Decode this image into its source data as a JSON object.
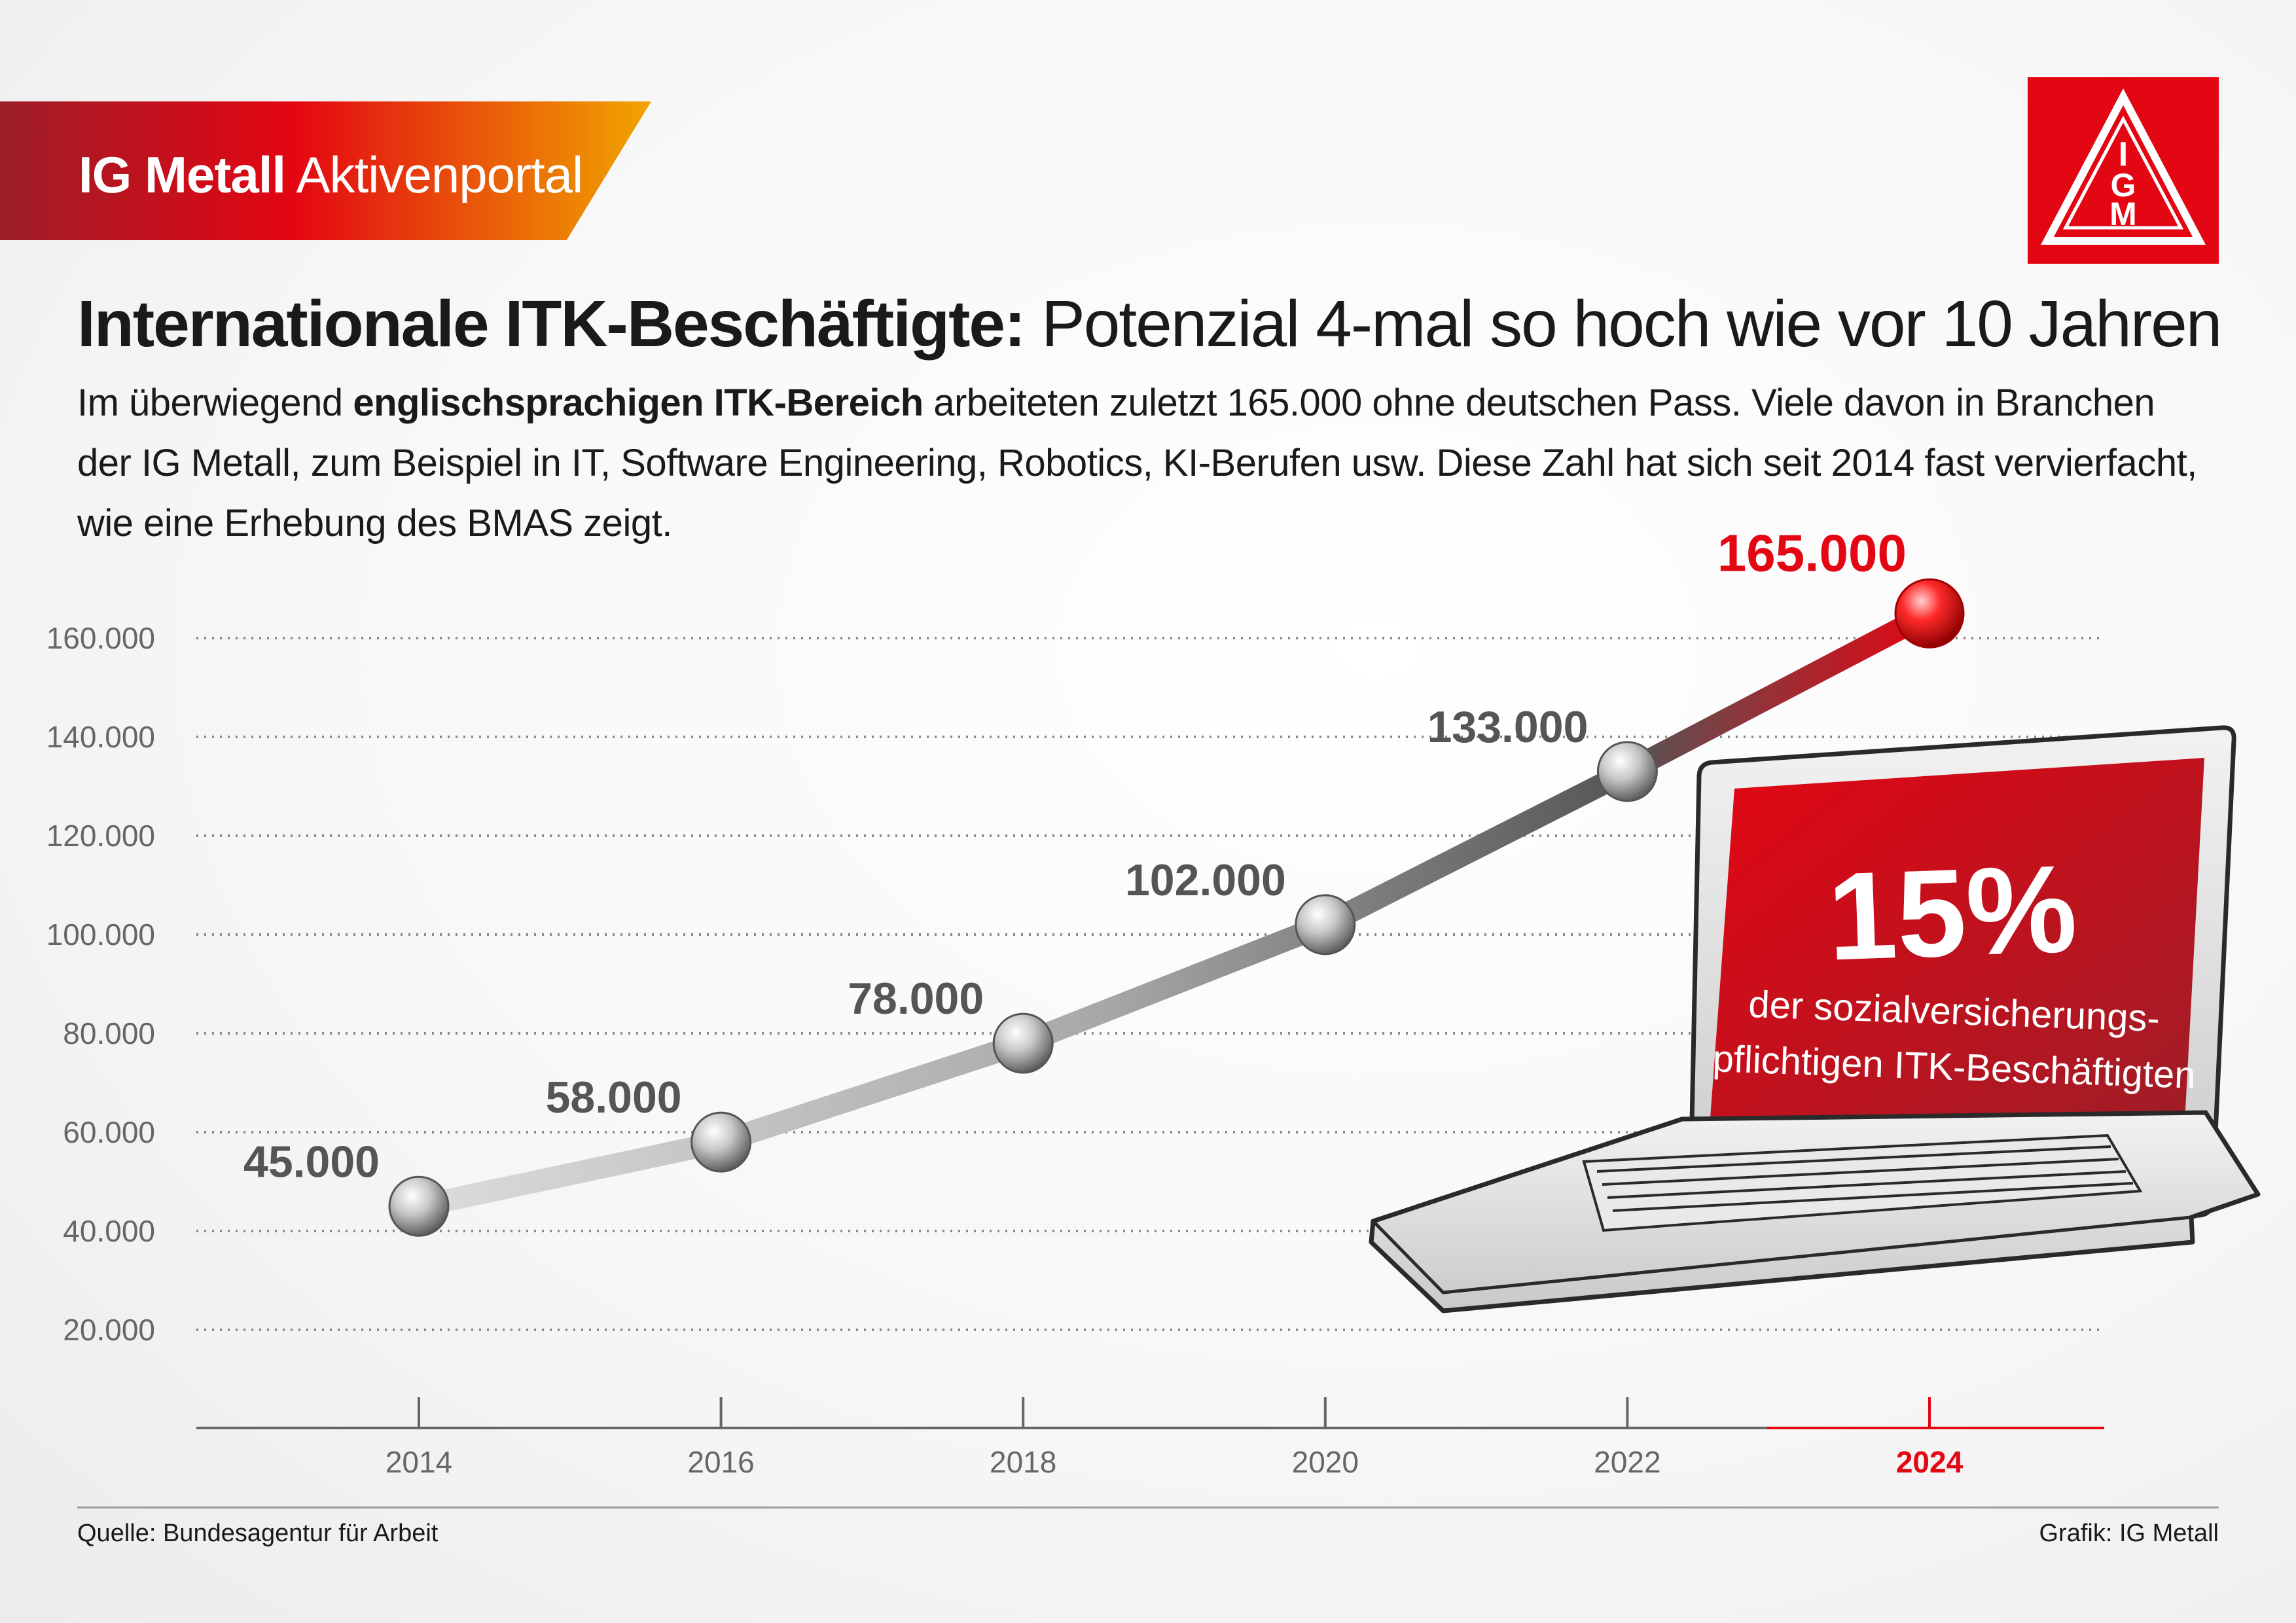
{
  "header": {
    "brand": "IG Metall",
    "portal": "Aktivenportal",
    "logo_text": "IGM"
  },
  "title": {
    "bold": "Internationale ITK-Beschäftigte:",
    "normal": "Potenzial 4-mal so hoch wie vor 10 Jahren"
  },
  "subtitle": {
    "line1_pre": "Im überwiegend ",
    "line1_bold": "englischsprachigen ITK-Bereich",
    "line1_post": " arbeiteten zuletzt 165.000 ohne deutschen Pass. Viele davon in Branchen",
    "line2": "der IG Metall, zum Beispiel in IT, Software Engineering, Robotics, KI-Berufen usw. Diese Zahl hat sich seit 2014 fast vervierfacht,",
    "line3": "wie eine Erhebung des BMAS zeigt."
  },
  "callout": {
    "percent": "15%",
    "line1": "der sozialversicherungs-",
    "line2": "pflichtigen ITK-Beschäftigten"
  },
  "footer": {
    "source": "Quelle: Bundesagentur für Arbeit",
    "credit": "Grafik: IG Metall"
  },
  "colors": {
    "accent": "#e30613",
    "dark_red": "#9c1e28",
    "orange": "#f0a500",
    "grey_dark": "#555555",
    "axis_grey": "#666666"
  },
  "chart_data": {
    "type": "line",
    "x": [
      "2014",
      "2016",
      "2018",
      "2020",
      "2022",
      "2024"
    ],
    "values": [
      45000,
      58000,
      78000,
      102000,
      133000,
      165000
    ],
    "data_labels": [
      "45.000",
      "58.000",
      "78.000",
      "102.000",
      "133.000",
      "165.000"
    ],
    "y_ticks": [
      20000,
      40000,
      60000,
      80000,
      100000,
      120000,
      140000,
      160000
    ],
    "y_tick_labels": [
      "20.000",
      "40.000",
      "60.000",
      "80.000",
      "100.000",
      "120.000",
      "140.000",
      "160.000"
    ],
    "ylim": [
      0,
      165000
    ],
    "highlight": "2024",
    "grid": "dotted horizontal",
    "xlabel": "",
    "ylabel": ""
  }
}
